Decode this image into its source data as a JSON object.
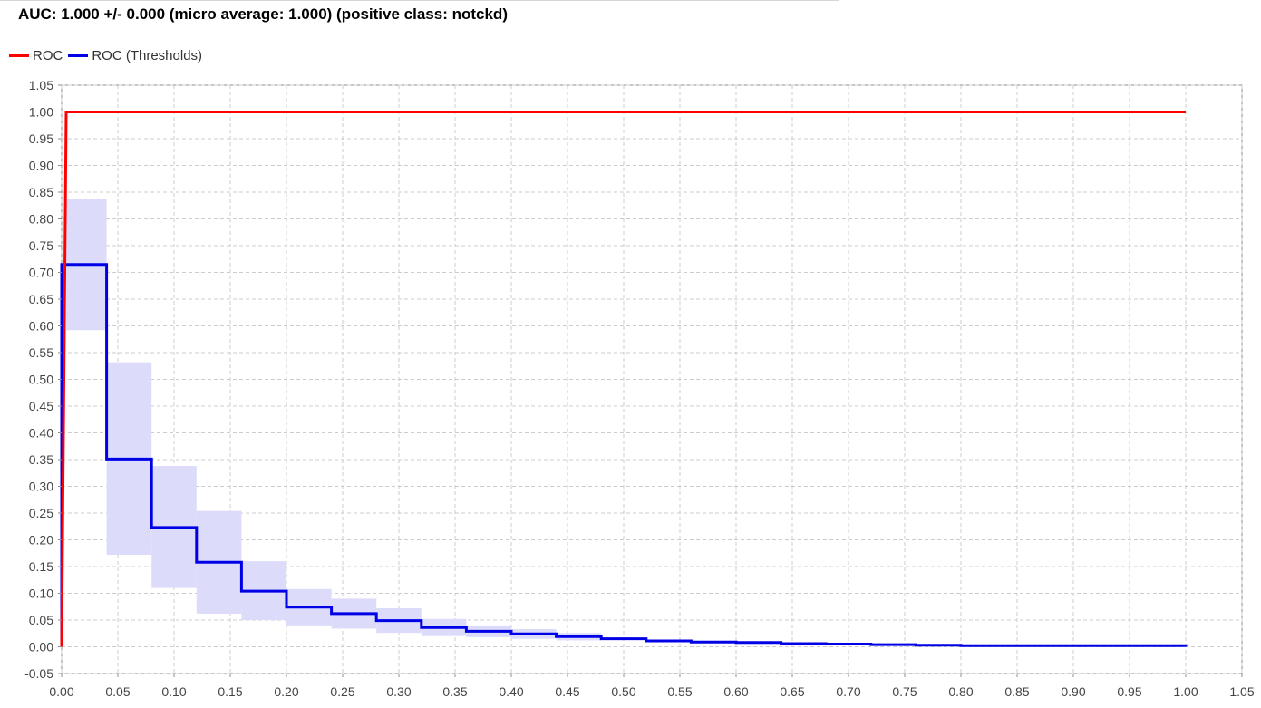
{
  "chart_data": {
    "type": "line",
    "title": "AUC: 1.000 +/- 0.000 (micro average: 1.000) (positive class: notckd)",
    "xlabel": "",
    "ylabel": "",
    "xlim": [
      0.0,
      1.05
    ],
    "ylim": [
      -0.05,
      1.05
    ],
    "xticks": [
      "0.00",
      "0.05",
      "0.10",
      "0.15",
      "0.20",
      "0.25",
      "0.30",
      "0.35",
      "0.40",
      "0.45",
      "0.50",
      "0.55",
      "0.60",
      "0.65",
      "0.70",
      "0.75",
      "0.80",
      "0.85",
      "0.90",
      "0.95",
      "1.00",
      "1.05"
    ],
    "yticks": [
      "-0.05",
      "0.00",
      "0.05",
      "0.10",
      "0.15",
      "0.20",
      "0.25",
      "0.30",
      "0.35",
      "0.40",
      "0.45",
      "0.50",
      "0.55",
      "0.60",
      "0.65",
      "0.70",
      "0.75",
      "0.80",
      "0.85",
      "0.90",
      "0.95",
      "1.00",
      "1.05"
    ],
    "grid": true,
    "legend_position": "top-left",
    "series": [
      {
        "name": "ROC",
        "color": "#ff0000",
        "x": [
          0.0,
          0.004,
          1.0
        ],
        "y": [
          0.0,
          1.0,
          1.0
        ]
      },
      {
        "name": "ROC (Thresholds)",
        "color": "#0000e6",
        "x": [
          0.0,
          0.0,
          0.04,
          0.04,
          0.08,
          0.08,
          0.12,
          0.12,
          0.16,
          0.16,
          0.2,
          0.2,
          0.24,
          0.24,
          0.28,
          0.28,
          0.32,
          0.32,
          0.36,
          0.36,
          0.4,
          0.4,
          0.44,
          0.44,
          0.48,
          0.48,
          0.52,
          0.52,
          0.56,
          0.56,
          0.6,
          0.6,
          0.64,
          0.64,
          0.68,
          0.68,
          0.72,
          0.72,
          0.76,
          0.76,
          0.8,
          0.8,
          1.0,
          1.0
        ],
        "y": [
          0.0,
          0.715,
          0.715,
          0.351,
          0.351,
          0.223,
          0.223,
          0.158,
          0.158,
          0.104,
          0.104,
          0.074,
          0.074,
          0.062,
          0.062,
          0.049,
          0.049,
          0.036,
          0.036,
          0.029,
          0.029,
          0.024,
          0.024,
          0.019,
          0.019,
          0.015,
          0.015,
          0.011,
          0.011,
          0.009,
          0.009,
          0.008,
          0.008,
          0.006,
          0.006,
          0.005,
          0.005,
          0.004,
          0.004,
          0.003,
          0.003,
          0.002,
          0.002,
          0.0
        ]
      }
    ],
    "confidence_band": {
      "series": "ROC (Thresholds)",
      "color": "#dcdcfa",
      "segments": [
        {
          "x0": 0.004,
          "x1": 0.04,
          "low": 0.592,
          "high": 0.838
        },
        {
          "x0": 0.04,
          "x1": 0.08,
          "low": 0.172,
          "high": 0.532
        },
        {
          "x0": 0.08,
          "x1": 0.12,
          "low": 0.11,
          "high": 0.338
        },
        {
          "x0": 0.12,
          "x1": 0.16,
          "low": 0.062,
          "high": 0.254
        },
        {
          "x0": 0.16,
          "x1": 0.2,
          "low": 0.05,
          "high": 0.16
        },
        {
          "x0": 0.2,
          "x1": 0.24,
          "low": 0.04,
          "high": 0.108
        },
        {
          "x0": 0.24,
          "x1": 0.28,
          "low": 0.034,
          "high": 0.09
        },
        {
          "x0": 0.28,
          "x1": 0.32,
          "low": 0.026,
          "high": 0.072
        },
        {
          "x0": 0.32,
          "x1": 0.36,
          "low": 0.02,
          "high": 0.052
        },
        {
          "x0": 0.36,
          "x1": 0.4,
          "low": 0.018,
          "high": 0.04
        },
        {
          "x0": 0.4,
          "x1": 0.44,
          "low": 0.015,
          "high": 0.033
        },
        {
          "x0": 0.44,
          "x1": 0.48,
          "low": 0.012,
          "high": 0.026
        }
      ]
    }
  }
}
